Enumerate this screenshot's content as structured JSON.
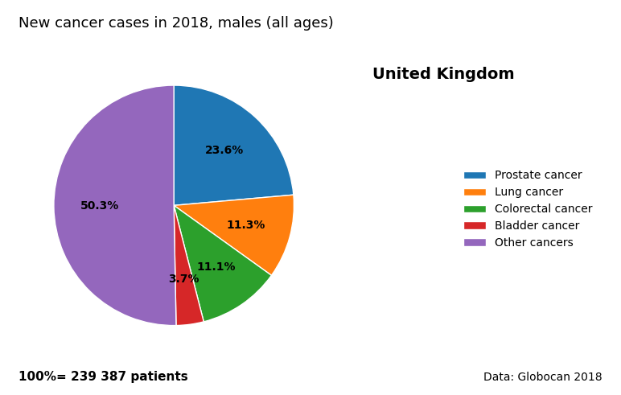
{
  "chart_data": {
    "type": "pie",
    "title": "New cancer cases in 2018, males (all ages)",
    "categories": [
      "Prostate cancer",
      "Lung cancer",
      "Colorectal cancer",
      "Bladder cancer",
      "Other cancers"
    ],
    "values": [
      23.6,
      11.3,
      11.1,
      3.7,
      50.3
    ],
    "value_labels": [
      "23.6%",
      "11.3%",
      "11.1%",
      "3.7%",
      "50.3%"
    ],
    "data_labels": true,
    "legend": "center right",
    "annotations": [
      "United Kingdom",
      "100%= 239 387 patients",
      "Data: Globocan 2018"
    ]
  }
}
